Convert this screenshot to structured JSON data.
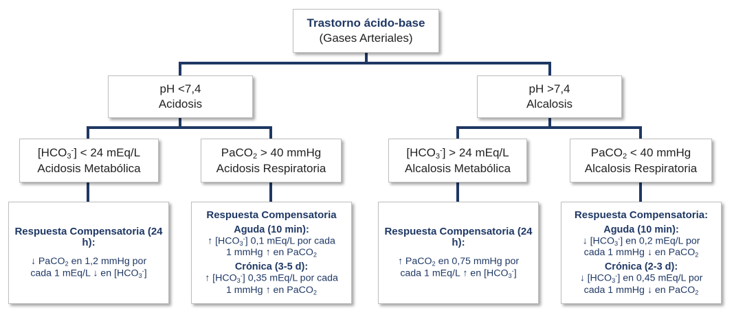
{
  "colors": {
    "connector": "#1f3864",
    "accent_text": "#1f3864",
    "body_text": "#222222"
  },
  "root": {
    "title": "Trastorno ácido-base",
    "subtitle": "(Gases Arteriales)"
  },
  "acidosis": {
    "ph": "pH <7,4",
    "label": "Acidosis"
  },
  "alcalosis": {
    "ph": "pH >7,4",
    "label": "Alcalosis"
  },
  "acid_met": {
    "criterion_a": "[HCO",
    "criterion_b": "] < 24 mEq/L",
    "label": "Acidosis Metabólica"
  },
  "acid_resp": {
    "criterion_a": "PaCO",
    "criterion_b": " > 40 mmHg",
    "label": "Acidosis Respiratoria"
  },
  "alc_met": {
    "criterion_a": "[HCO",
    "criterion_b": "] > 24 mEq/L",
    "label": "Alcalosis Metabólica"
  },
  "alc_resp": {
    "criterion_a": "PaCO",
    "criterion_b": " < 40 mmHg",
    "label": "Alcalosis Respiratoria"
  },
  "chem": {
    "sub3": "3",
    "subminus": "-",
    "sub2": "2"
  },
  "resp_acid_met": {
    "heading": "Respuesta Compensatoria (24 h):",
    "l1a": "↓ PaCO",
    "l1b": " en 1,2 mmHg por",
    "l2a": "cada 1 mEq/L ↓ en [HCO",
    "l2b": "]"
  },
  "resp_acid_resp": {
    "heading": "Respuesta Compensatoria",
    "aguda": "Aguda (10 min):",
    "a1a": "↑ [HCO",
    "a1b": "] 0,1 mEq/L por cada",
    "a2a": "1 mmHg ↑ en PaCO",
    "cronica": "Crónica (3-5 d):",
    "c1a": "↑ [HCO",
    "c1b": "] 0,35 mEq/L por cada",
    "c2a": "1 mmHg ↑ en PaCO"
  },
  "resp_alc_met": {
    "heading": "Respuesta Compensatoria (24 h):",
    "l1a": "↑ PaCO",
    "l1b": " en 0,75 mmHg por",
    "l2a": "cada 1 mEq/L ↑ en [HCO",
    "l2b": "]"
  },
  "resp_alc_resp": {
    "heading": "Respuesta Compensatoria:",
    "aguda": "Aguda (10 min):",
    "a1a": "↓ [HCO",
    "a1b": "] en 0,2 mEq/L por",
    "a2a": "cada 1 mmHg ↓ en PaCO",
    "cronica": "Crónica (2-3 d):",
    "c1a": "↓ [HCO",
    "c1b": "] en 0,45 mEq/L por",
    "c2a": "cada 1 mmHg ↓ en PaCO"
  }
}
